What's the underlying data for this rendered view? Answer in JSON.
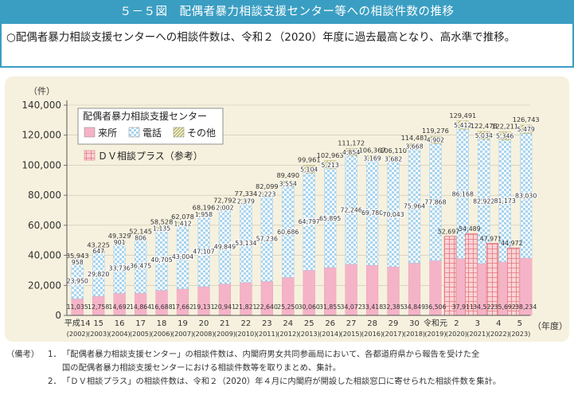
{
  "header": {
    "title": "５－５図　配偶者暴力相談支援センター等への相談件数の推移",
    "summary": "○配偶者暴力相談支援センターへの相談件数は、令和２（2020）年度に過去最高となり、高水準で推移。"
  },
  "notes": {
    "label": "（備考）",
    "items": [
      {
        "num": "1．",
        "text": "「配偶者暴力相談支援センター」の相談件数は、内閣府男女共同参画局において、各都道府県から報告を受けた全"
      },
      {
        "num": "",
        "text": "国の配偶者暴力相談支援センターにおける相談件数等を取りまとめ、集計。"
      },
      {
        "num": "2．",
        "text": "「ＤＶ相談プラス」の相談件数は、令和２（2020）年４月に内閣府が開設した相談窓口に寄せられた相談件数を集計。"
      }
    ]
  },
  "colors": {
    "visit": "#f5b3c8",
    "phone_a": "#ffffff",
    "phone_b": "#a8d4ef",
    "other_a": "#f3f0cc",
    "other_b": "#9c9a4e",
    "dv_bg": "#fbd3d6",
    "dv_line": "#e0787e",
    "panel": "#f6f1de"
  },
  "chart_data": {
    "type": "bar",
    "title": "配偶者暴力相談支援センター",
    "ylabel": "（件）",
    "xlabel": "（年度）",
    "ylim": [
      0,
      140000
    ],
    "yticks": [
      "0",
      "20,000",
      "40,000",
      "60,000",
      "80,000",
      "100,000",
      "120,000",
      "140,000"
    ],
    "legend": {
      "group_title": "配偶者暴力相談支援センター",
      "visit": "来所",
      "phone": "電話",
      "other": "その他",
      "dv": "ＤＶ相談プラス（参考）"
    },
    "categories": [
      {
        "era": "平成14",
        "year": "(2002)"
      },
      {
        "era": "15",
        "year": "(2003)"
      },
      {
        "era": "16",
        "year": "(2004)"
      },
      {
        "era": "17",
        "year": "(2005)"
      },
      {
        "era": "18",
        "year": "(2006)"
      },
      {
        "era": "19",
        "year": "(2007)"
      },
      {
        "era": "20",
        "year": "(2008)"
      },
      {
        "era": "21",
        "year": "(2009)"
      },
      {
        "era": "22",
        "year": "(2010)"
      },
      {
        "era": "23",
        "year": "(2011)"
      },
      {
        "era": "24",
        "year": "(2012)"
      },
      {
        "era": "25",
        "year": "(2013)"
      },
      {
        "era": "26",
        "year": "(2014)"
      },
      {
        "era": "27",
        "year": "(2015)"
      },
      {
        "era": "28",
        "year": "(2016)"
      },
      {
        "era": "29",
        "year": "(2017)"
      },
      {
        "era": "30",
        "year": "(2018)"
      },
      {
        "era": "令和元",
        "year": "(2019)"
      },
      {
        "era": "2",
        "year": "(2020)"
      },
      {
        "era": "3",
        "year": "(2021)"
      },
      {
        "era": "4",
        "year": "(2022)"
      },
      {
        "era": "5",
        "year": "(2023)"
      }
    ],
    "series": [
      {
        "name": "来所",
        "values": [
          11035,
          12758,
          14692,
          14864,
          16688,
          17662,
          19131,
          20941,
          21821,
          22640,
          25250,
          30060,
          31855,
          34072,
          33418,
          32385,
          34849,
          36506,
          37911,
          34522,
          35692,
          38234
        ],
        "labels": [
          "11,035",
          "12,758",
          "14,692",
          "14,864",
          "16,688",
          "17,662",
          "19,131",
          "20,941",
          "21,821",
          "22,640",
          "25,250",
          "30,060",
          "31,855",
          "34,072",
          "33,418",
          "32,385",
          "34,849",
          "36,506",
          "37,911",
          "34,522",
          "35,692",
          "38,234"
        ]
      },
      {
        "name": "電話",
        "values": [
          23950,
          29820,
          33736,
          36475,
          40705,
          43004,
          47107,
          49849,
          53134,
          57236,
          60686,
          64797,
          65895,
          72246,
          69780,
          70043,
          75964,
          77868,
          86168,
          82922,
          81173,
          83030
        ],
        "labels": [
          "23,950",
          "29,820",
          "33,736",
          "36,475",
          "40,705",
          "43,004",
          "47,107",
          "49,849",
          "53,134",
          "57,236",
          "60,686",
          "64,797",
          "65,895",
          "72,246",
          "69,780",
          "70,043",
          "75,964",
          "77,868",
          "86,168",
          "82,922",
          "81,173",
          "83,030"
        ]
      },
      {
        "name": "その他",
        "values": [
          958,
          647,
          901,
          806,
          1135,
          1412,
          1958,
          2002,
          2379,
          2223,
          3554,
          5104,
          5213,
          4854,
          3169,
          3682,
          3668,
          4902,
          5412,
          5034,
          5346,
          5479
        ],
        "labels": [
          "958",
          "647",
          "901",
          "806",
          "1,135",
          "1,412",
          "1,958",
          "2,002",
          "2,379",
          "2,223",
          "3,554",
          "5,104",
          "5,213",
          "4,854",
          "3,169",
          "3,682",
          "3,668",
          "4,902",
          "5,412",
          "5,034",
          "5,346",
          "5,479"
        ]
      }
    ],
    "totals": [
      35943,
      43225,
      49329,
      52145,
      58528,
      62078,
      68196,
      72792,
      77334,
      82099,
      89490,
      99961,
      102963,
      111172,
      106367,
      106110,
      114481,
      119276,
      129491,
      122478,
      122211,
      126743
    ],
    "total_labels": [
      "35,943",
      "43,225",
      "49,329",
      "52,145",
      "58,528",
      "62,078",
      "68,196",
      "72,792",
      "77,334",
      "82,099",
      "89,490",
      "99,961",
      "102,963",
      "111,172",
      "106,367",
      "106,110",
      "114,481",
      "119,276",
      "129,491",
      "122,478",
      "122,211",
      "126,743"
    ],
    "dv_plus": {
      "name": "ＤＶ相談プラス（参考）",
      "start_index": 18,
      "values": [
        52697,
        54489,
        47971,
        44972
      ],
      "labels": [
        "52,697",
        "54,489",
        "47,971",
        "44,972"
      ]
    }
  }
}
